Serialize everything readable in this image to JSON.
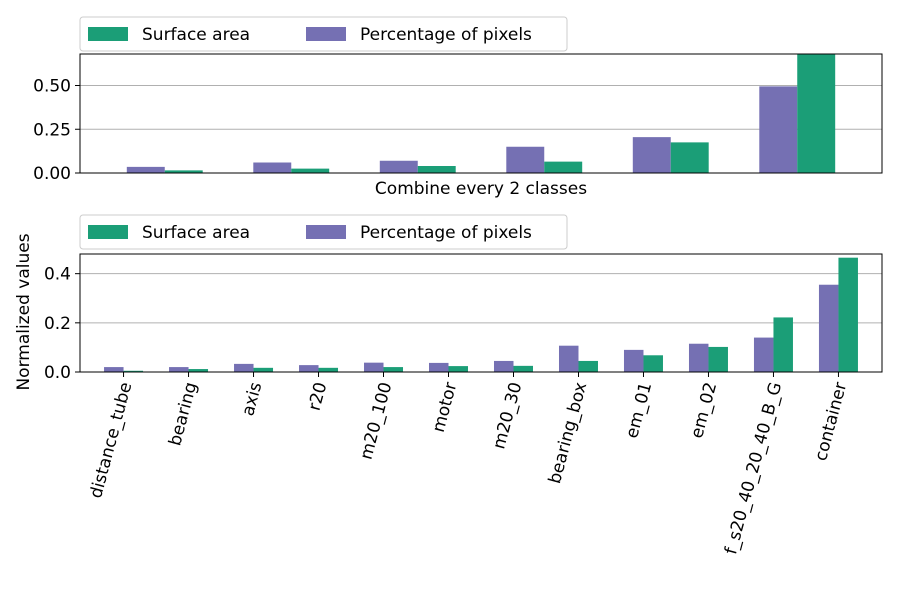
{
  "chart_data": [
    {
      "type": "bar",
      "xlabel": "Combine every 2 classes",
      "ylabel": "",
      "ylim": [
        0,
        0.68
      ],
      "yticks": [
        0.0,
        0.25,
        0.5
      ],
      "ytick_labels": [
        "0.00",
        "0.25",
        "0.50"
      ],
      "categories": [
        "",
        "",
        "",
        "",
        "",
        ""
      ],
      "grid": "horizontal",
      "legend": {
        "placement": "above-left",
        "columns": 2
      },
      "series": [
        {
          "name": "Surface area",
          "color": "#1b9e77",
          "values": [
            0.015,
            0.025,
            0.04,
            0.065,
            0.175,
            0.68
          ]
        },
        {
          "name": "Percentage of pixels",
          "color": "#7570b3",
          "values": [
            0.035,
            0.06,
            0.07,
            0.15,
            0.205,
            0.495
          ]
        }
      ]
    },
    {
      "type": "bar",
      "xlabel": "",
      "ylabel": "Normalized values",
      "ylim": [
        0,
        0.48
      ],
      "yticks": [
        0.0,
        0.2,
        0.4
      ],
      "ytick_labels": [
        "0.0",
        "0.2",
        "0.4"
      ],
      "categories": [
        "distance_tube",
        "bearing",
        "axis",
        "r20",
        "m20_100",
        "motor",
        "m20_30",
        "bearing_box",
        "em_01",
        "em_02",
        "f_s20_40_20_40_B_G",
        "container"
      ],
      "grid": "horizontal",
      "legend": {
        "placement": "above-left",
        "columns": 2
      },
      "series": [
        {
          "name": "Surface area",
          "color": "#1b9e77",
          "values": [
            0.005,
            0.012,
            0.017,
            0.017,
            0.02,
            0.024,
            0.025,
            0.045,
            0.068,
            0.102,
            0.222,
            0.465
          ]
        },
        {
          "name": "Percentage of pixels",
          "color": "#7570b3",
          "values": [
            0.02,
            0.02,
            0.033,
            0.028,
            0.038,
            0.037,
            0.045,
            0.107,
            0.09,
            0.115,
            0.14,
            0.355
          ]
        }
      ]
    }
  ]
}
